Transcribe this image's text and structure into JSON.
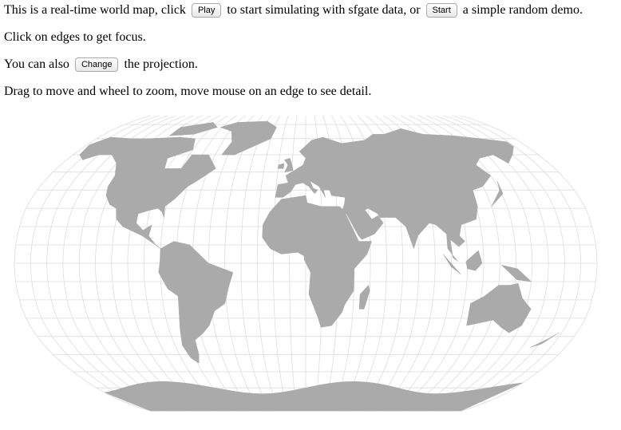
{
  "intro": {
    "before": "This is a real-time world map, click",
    "play_button": "Play",
    "middle": "to start simulating with sfgate data, or",
    "start_button": "Start",
    "after": "a simple random demo."
  },
  "focus_hint": "Click on edges to get focus.",
  "projection": {
    "before": "You can also",
    "change_button": "Change",
    "after": "the projection."
  },
  "controls_hint": "Drag to move and wheel to zoom, move mouse on an edge to see detail."
}
